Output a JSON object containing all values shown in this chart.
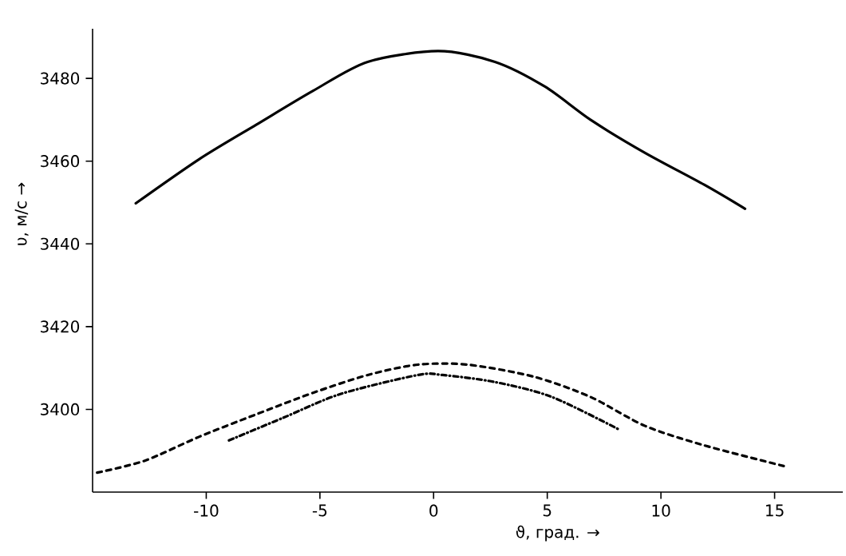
{
  "chart_data": {
    "type": "line",
    "xlabel": "ϑ, град. →",
    "ylabel": "υ, м/с →",
    "xlim": [
      -15,
      18
    ],
    "ylim": [
      3380,
      3492
    ],
    "xticks": [
      -10,
      -5,
      0,
      5,
      10,
      15
    ],
    "yticks": [
      3400,
      3420,
      3440,
      3460,
      3480
    ],
    "grid": false,
    "marker": "none",
    "series": [
      {
        "color": "#000000",
        "line_style": "solid",
        "x": [
          -13.1,
          -10.3,
          -7.8,
          -5.3,
          -2.9,
          0.2,
          2.7,
          4.9,
          6.9,
          9.3,
          11.9,
          13.7
        ],
        "values": [
          3449.8,
          3460.5,
          3468.8,
          3477,
          3484,
          3486.6,
          3484,
          3478,
          3470,
          3462,
          3454.3,
          3448.5
        ]
      },
      {
        "color": "#000000",
        "line_style": "dashed",
        "x": [
          -14.8,
          -12.7,
          -10.3,
          -7.8,
          -5.3,
          -2.9,
          -0.7,
          1.5,
          4.4,
          6.9,
          9.3,
          11.9,
          15.4
        ],
        "values": [
          3384.7,
          3387.6,
          3393.4,
          3398.8,
          3404,
          3408.3,
          3410.8,
          3410.8,
          3407.9,
          3403,
          3396,
          3391.3,
          3386.3
        ]
      },
      {
        "color": "#000000",
        "line_style": "dashdot",
        "x": [
          -9.0,
          -6.6,
          -4.1,
          -0.7,
          0.4,
          2.7,
          5.2,
          8.2
        ],
        "values": [
          3392.5,
          3398,
          3403.7,
          3408.3,
          3408.3,
          3406.6,
          3403,
          3395
        ]
      }
    ]
  }
}
